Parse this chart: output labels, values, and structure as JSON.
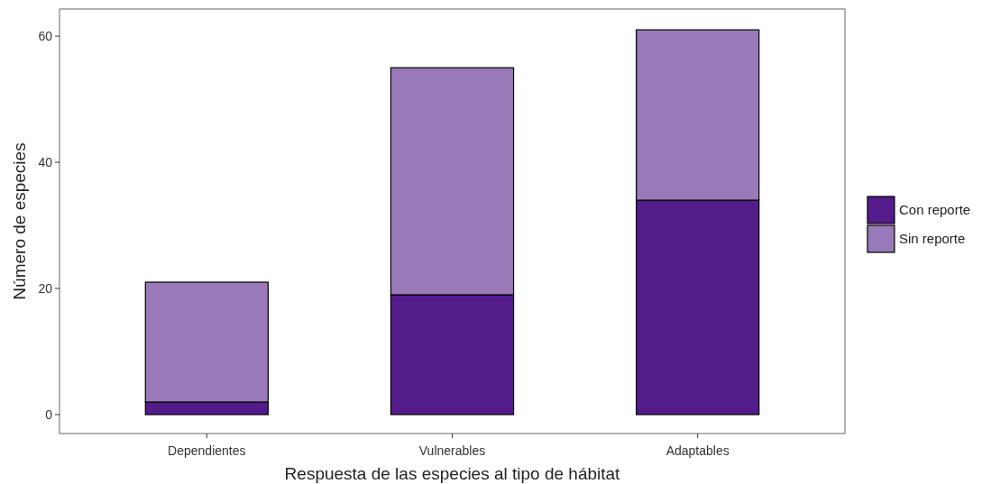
{
  "chart_data": {
    "type": "bar",
    "stacked": true,
    "xlabel": "Respuesta de las especies al tipo de hábitat",
    "ylabel": "Número de especies",
    "categories": [
      "Dependientes",
      "Vulnerables",
      "Adaptables"
    ],
    "series": [
      {
        "name": "Con reporte",
        "color": "#541b8b",
        "values": [
          2,
          19,
          34
        ]
      },
      {
        "name": "Sin reporte",
        "color": "#9a79b8",
        "values": [
          19,
          36,
          27
        ]
      }
    ],
    "ylim": [
      -3,
      64.3
    ],
    "yticks": [
      0,
      20,
      40,
      60
    ],
    "grid": false,
    "legend": "right"
  }
}
